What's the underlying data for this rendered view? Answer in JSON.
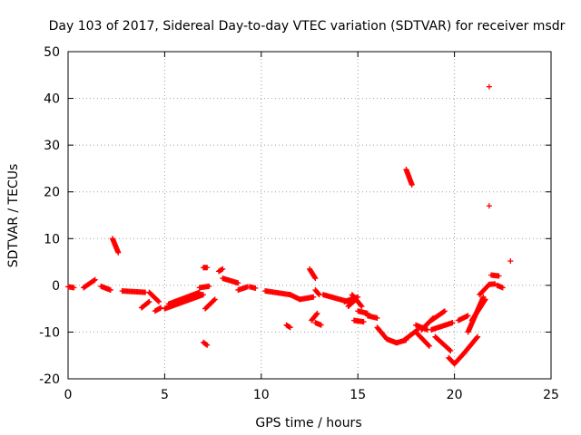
{
  "chart_data": {
    "type": "scatter",
    "title": "Day 103 of 2017, Sidereal Day-to-day VTEC variation (SDTVAR) for receiver msdr",
    "xlabel": "GPS time / hours",
    "ylabel": "SDTVAR / TECUs",
    "xlim": [
      0,
      25
    ],
    "ylim": [
      -20,
      50
    ],
    "xticks": [
      0,
      5,
      10,
      15,
      20,
      25
    ],
    "yticks": [
      -20,
      -10,
      0,
      10,
      20,
      30,
      40,
      50
    ],
    "grid": true,
    "marker": "+",
    "color": "#ff0000",
    "segments": [
      {
        "x0": 0.0,
        "x1": 0.3,
        "y0": -0.3,
        "y1": -0.5
      },
      {
        "x0": 0.8,
        "x1": 1.4,
        "y0": -0.5,
        "y1": 1.2
      },
      {
        "x0": 1.7,
        "x1": 2.2,
        "y0": -0.2,
        "y1": -1.0
      },
      {
        "x0": 2.3,
        "x1": 2.6,
        "y0": 10.0,
        "y1": 7.0
      },
      {
        "x0": 2.8,
        "x1": 4.0,
        "y0": -1.2,
        "y1": -1.5
      },
      {
        "x0": 3.8,
        "x1": 4.2,
        "y0": -4.8,
        "y1": -3.5
      },
      {
        "x0": 4.2,
        "x1": 4.7,
        "y0": -1.5,
        "y1": -3.5
      },
      {
        "x0": 4.5,
        "x1": 4.8,
        "y0": -5.5,
        "y1": -4.8
      },
      {
        "x0": 5.0,
        "x1": 7.0,
        "y0": -5.0,
        "y1": -2.0
      },
      {
        "x0": 5.2,
        "x1": 6.8,
        "y0": -4.0,
        "y1": -1.5
      },
      {
        "x0": 6.8,
        "x1": 7.3,
        "y0": -0.5,
        "y1": -0.2
      },
      {
        "x0": 7.0,
        "x1": 7.2,
        "y0": 3.8,
        "y1": 3.8
      },
      {
        "x0": 7.0,
        "x1": 7.2,
        "y0": -12.2,
        "y1": -12.8
      },
      {
        "x0": 7.1,
        "x1": 7.6,
        "y0": -5.0,
        "y1": -3.0
      },
      {
        "x0": 7.8,
        "x1": 8.0,
        "y0": 3.0,
        "y1": 3.5
      },
      {
        "x0": 8.0,
        "x1": 8.8,
        "y0": 1.5,
        "y1": 0.5
      },
      {
        "x0": 8.8,
        "x1": 9.3,
        "y0": -1.0,
        "y1": -0.3
      },
      {
        "x0": 9.4,
        "x1": 9.7,
        "y0": -0.3,
        "y1": -0.6
      },
      {
        "x0": 10.2,
        "x1": 11.5,
        "y0": -1.2,
        "y1": -2.0
      },
      {
        "x0": 11.3,
        "x1": 11.5,
        "y0": -8.5,
        "y1": -9.0
      },
      {
        "x0": 11.5,
        "x1": 12.0,
        "y0": -2.0,
        "y1": -3.0
      },
      {
        "x0": 12.0,
        "x1": 12.7,
        "y0": -3.0,
        "y1": -2.5
      },
      {
        "x0": 12.5,
        "x1": 12.8,
        "y0": 3.5,
        "y1": 1.5
      },
      {
        "x0": 12.6,
        "x1": 12.9,
        "y0": -7.5,
        "y1": -6.0
      },
      {
        "x0": 12.8,
        "x1": 13.1,
        "y0": -8.0,
        "y1": -8.5
      },
      {
        "x0": 12.8,
        "x1": 13.0,
        "y0": -1.0,
        "y1": -2.0
      },
      {
        "x0": 13.2,
        "x1": 14.5,
        "y0": -2.0,
        "y1": -3.5
      },
      {
        "x0": 14.3,
        "x1": 15.0,
        "y0": -3.5,
        "y1": -2.5
      },
      {
        "x0": 14.5,
        "x1": 14.9,
        "y0": -4.5,
        "y1": -3.0
      },
      {
        "x0": 14.7,
        "x1": 15.2,
        "y0": -2.0,
        "y1": -4.5
      },
      {
        "x0": 15.0,
        "x1": 15.5,
        "y0": -5.5,
        "y1": -6.0
      },
      {
        "x0": 14.8,
        "x1": 15.3,
        "y0": -7.5,
        "y1": -7.8
      },
      {
        "x0": 15.5,
        "x1": 16.0,
        "y0": -6.5,
        "y1": -7.0
      },
      {
        "x0": 16.0,
        "x1": 16.5,
        "y0": -9.0,
        "y1": -11.5
      },
      {
        "x0": 16.5,
        "x1": 17.0,
        "y0": -11.5,
        "y1": -12.3
      },
      {
        "x0": 17.0,
        "x1": 17.5,
        "y0": -12.3,
        "y1": -11.7
      },
      {
        "x0": 17.5,
        "x1": 17.8,
        "y0": 24.8,
        "y1": 21.5
      },
      {
        "x0": 17.4,
        "x1": 18.1,
        "y0": -11.7,
        "y1": -9.5
      },
      {
        "x0": 18.0,
        "x1": 18.6,
        "y0": -8.5,
        "y1": -9.5
      },
      {
        "x0": 18.0,
        "x1": 18.7,
        "y0": -10.0,
        "y1": -13.0
      },
      {
        "x0": 18.3,
        "x1": 18.9,
        "y0": -9.5,
        "y1": -7.0
      },
      {
        "x0": 18.8,
        "x1": 19.5,
        "y0": -7.5,
        "y1": -5.5
      },
      {
        "x0": 18.8,
        "x1": 19.9,
        "y0": -9.5,
        "y1": -8.0
      },
      {
        "x0": 19.0,
        "x1": 19.8,
        "y0": -11.0,
        "y1": -14.0
      },
      {
        "x0": 19.7,
        "x1": 20.0,
        "y0": -15.5,
        "y1": -16.8
      },
      {
        "x0": 20.0,
        "x1": 20.5,
        "y0": -16.8,
        "y1": -14.5
      },
      {
        "x0": 20.5,
        "x1": 21.2,
        "y0": -14.5,
        "y1": -11.0
      },
      {
        "x0": 20.2,
        "x1": 20.7,
        "y0": -7.5,
        "y1": -6.5
      },
      {
        "x0": 20.7,
        "x1": 21.5,
        "y0": -10.0,
        "y1": -2.5
      },
      {
        "x0": 20.9,
        "x1": 21.6,
        "y0": -7.5,
        "y1": -3.0
      },
      {
        "x0": 21.3,
        "x1": 21.8,
        "y0": -2.0,
        "y1": 0.2
      },
      {
        "x0": 21.8,
        "x1": 22.1,
        "y0": 0.2,
        "y1": 0.3
      },
      {
        "x0": 21.9,
        "x1": 22.3,
        "y0": 2.2,
        "y1": 2.0
      },
      {
        "x0": 22.2,
        "x1": 22.5,
        "y0": 0.0,
        "y1": -0.5
      }
    ],
    "outliers": [
      {
        "x": 21.8,
        "y": 42.5
      },
      {
        "x": 21.8,
        "y": 17.0
      },
      {
        "x": 22.9,
        "y": 5.2
      }
    ]
  }
}
